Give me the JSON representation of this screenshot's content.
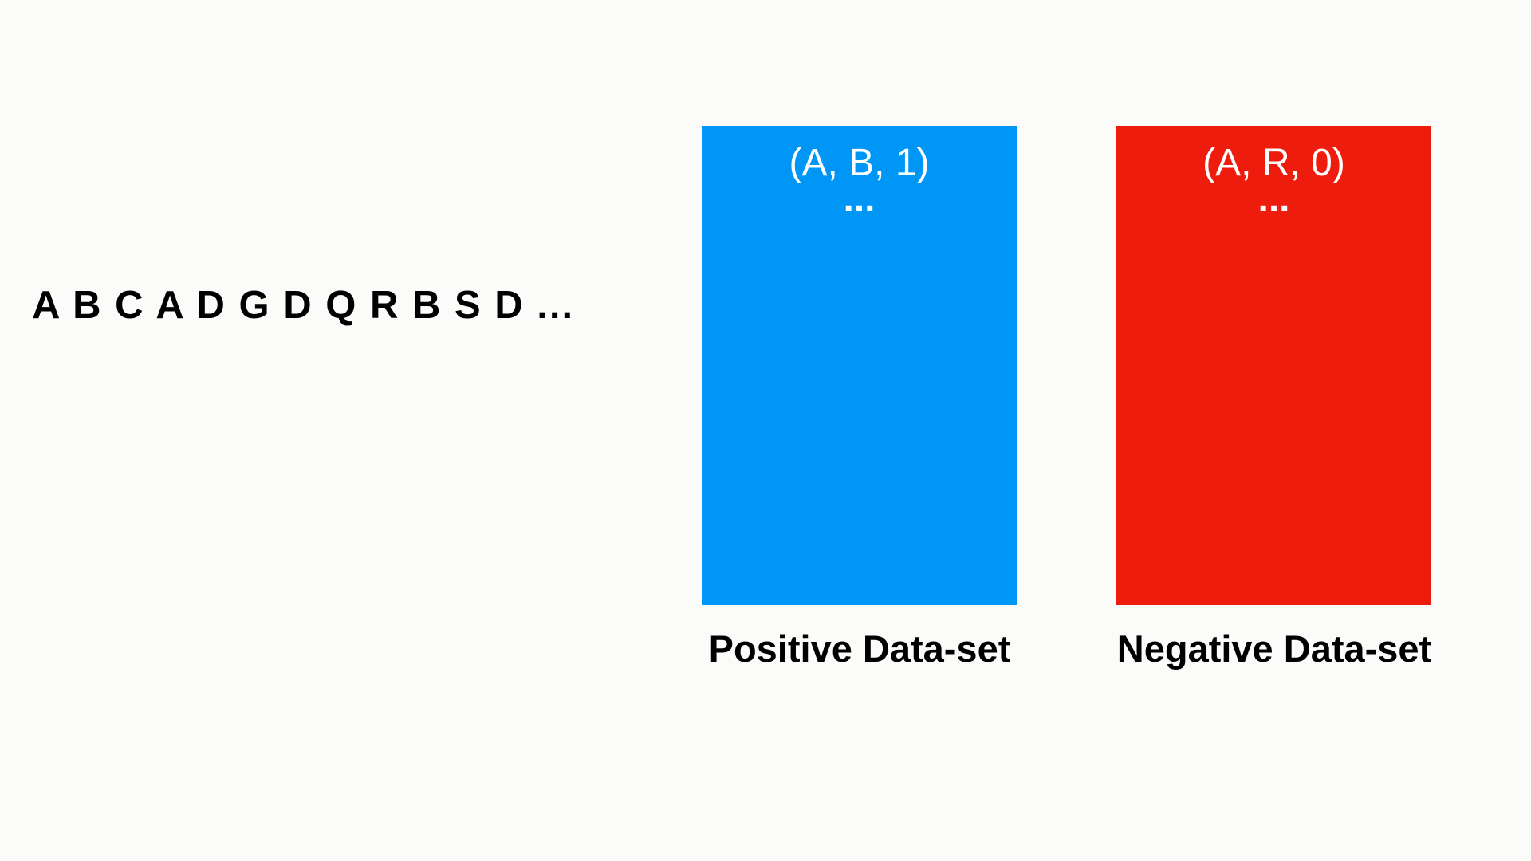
{
  "sequence": {
    "text": "A B C A D G D Q R B S D ..."
  },
  "positive_dataset": {
    "color": "#0096f5",
    "entry": "(A, B, 1)",
    "ellipsis": "...",
    "label": "Positive Data-set"
  },
  "negative_dataset": {
    "color": "#ee1c0c",
    "entry": "(A, R, 0)",
    "ellipsis": "...",
    "label": "Negative Data-set"
  }
}
